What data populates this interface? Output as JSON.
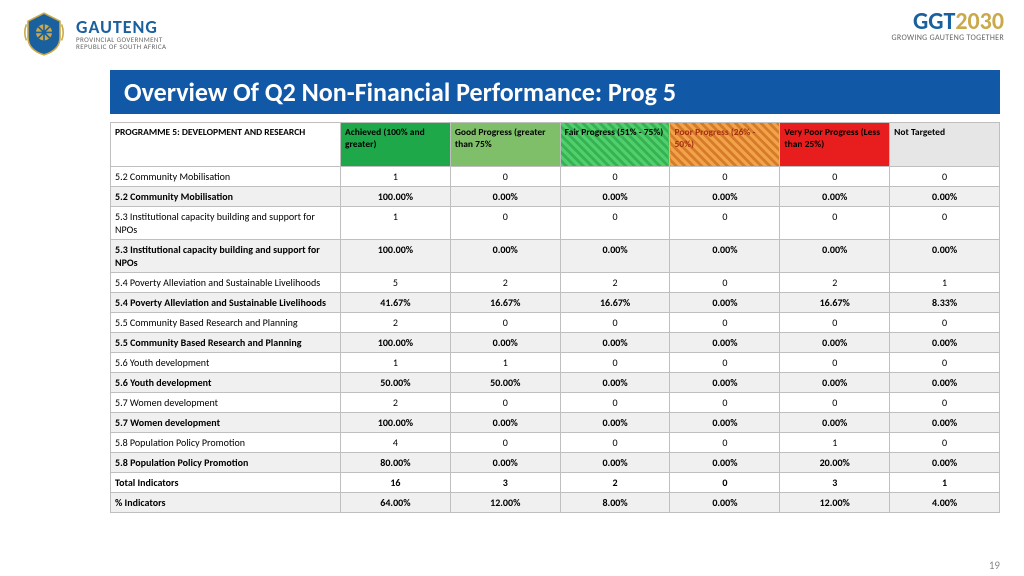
{
  "header": {
    "gauteng_main": "GAUTENG",
    "gauteng_sub1": "PROVINCIAL GOVERNMENT",
    "gauteng_sub2": "REPUBLIC OF SOUTH AFRICA",
    "ggt_prefix": "GGT",
    "ggt_year": "2030",
    "ggt_sub": "GROWING GAUTENG TOGETHER"
  },
  "title": "Overview Of Q2 Non-Financial Performance: Prog 5",
  "table": {
    "columns": [
      "PROGRAMME 5: DEVELOPMENT AND RESEARCH",
      "Achieved (100%  and greater)",
      "Good Progress (greater than 75%",
      "Fair Progress (51% - 75%)",
      "Poor Progress (26% - 50%)",
      "Very Poor Progress (Less than 25%)",
      "Not Targeted"
    ],
    "header_bg": [
      "#ffffff",
      "#1fa84a",
      "#7fbf6a",
      "#4fd06a",
      "#f2a34a",
      "#e81e1e",
      "#e6e6e6"
    ],
    "rows": [
      {
        "bold": false,
        "cells": [
          "5.2 Community Mobilisation",
          "1",
          "0",
          "0",
          "0",
          "0",
          "0"
        ]
      },
      {
        "bold": true,
        "cells": [
          "5.2 Community Mobilisation",
          "100.00%",
          "0.00%",
          "0.00%",
          "0.00%",
          "0.00%",
          "0.00%"
        ]
      },
      {
        "bold": false,
        "cells": [
          "5.3 Institutional capacity building and support for NPOs",
          "1",
          "0",
          "0",
          "0",
          "0",
          "0"
        ]
      },
      {
        "bold": true,
        "cells": [
          "5.3 Institutional capacity building and support for NPOs",
          "100.00%",
          "0.00%",
          "0.00%",
          "0.00%",
          "0.00%",
          "0.00%"
        ]
      },
      {
        "bold": false,
        "cells": [
          "5.4 Poverty Alleviation and Sustainable Livelihoods",
          "5",
          "2",
          "2",
          "0",
          "2",
          "1"
        ]
      },
      {
        "bold": true,
        "cells": [
          "5.4 Poverty Alleviation and Sustainable Livelihoods",
          "41.67%",
          "16.67%",
          "16.67%",
          "0.00%",
          "16.67%",
          "8.33%"
        ]
      },
      {
        "bold": false,
        "cells": [
          "5.5 Community Based Research and Planning",
          "2",
          "0",
          "0",
          "0",
          "0",
          "0"
        ]
      },
      {
        "bold": true,
        "cells": [
          "5.5 Community Based Research and Planning",
          "100.00%",
          "0.00%",
          "0.00%",
          "0.00%",
          "0.00%",
          "0.00%"
        ]
      },
      {
        "bold": false,
        "cells": [
          "5.6 Youth development",
          "1",
          "1",
          "0",
          "0",
          "0",
          "0"
        ]
      },
      {
        "bold": true,
        "cells": [
          "5.6 Youth development",
          "50.00%",
          "50.00%",
          "0.00%",
          "0.00%",
          "0.00%",
          "0.00%"
        ]
      },
      {
        "bold": false,
        "cells": [
          "5.7 Women development",
          "2",
          "0",
          "0",
          "0",
          "0",
          "0"
        ]
      },
      {
        "bold": true,
        "cells": [
          "5.7 Women development",
          "100.00%",
          "0.00%",
          "0.00%",
          "0.00%",
          "0.00%",
          "0.00%"
        ]
      },
      {
        "bold": false,
        "cells": [
          "5.8 Population Policy Promotion",
          "4",
          "0",
          "0",
          "0",
          "1",
          "0"
        ]
      },
      {
        "bold": true,
        "cells": [
          "5.8 Population Policy Promotion",
          "80.00%",
          "0.00%",
          "0.00%",
          "0.00%",
          "20.00%",
          "0.00%"
        ]
      },
      {
        "bold": true,
        "cells": [
          "Total Indicators",
          "16",
          "3",
          "2",
          "0",
          "3",
          "1"
        ]
      },
      {
        "bold": true,
        "cells": [
          "% Indicators",
          "64.00%",
          "12.00%",
          "8.00%",
          "0.00%",
          "12.00%",
          "4.00%"
        ]
      }
    ]
  },
  "page_number": "19"
}
